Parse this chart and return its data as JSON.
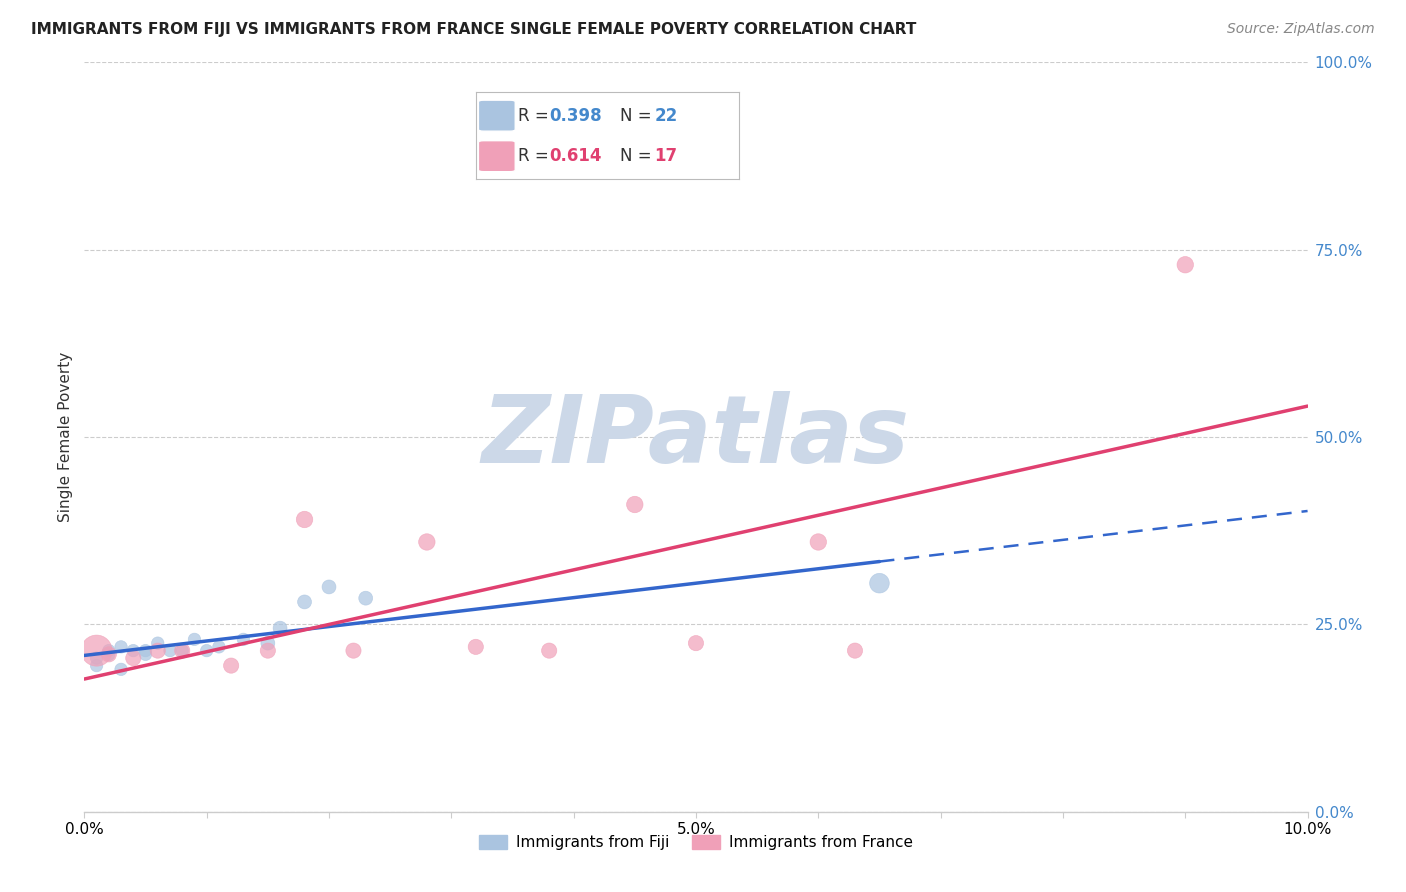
{
  "title": "IMMIGRANTS FROM FIJI VS IMMIGRANTS FROM FRANCE SINGLE FEMALE POVERTY CORRELATION CHART",
  "source": "Source: ZipAtlas.com",
  "ylabel": "Single Female Poverty",
  "xlim": [
    0.0,
    0.1
  ],
  "ylim": [
    0.0,
    1.0
  ],
  "ytick_right": [
    0.0,
    0.25,
    0.5,
    0.75,
    1.0
  ],
  "ytick_right_labels": [
    "0.0%",
    "25.0%",
    "50.0%",
    "75.0%",
    "100.0%"
  ],
  "xtick_vals": [
    0.0,
    0.01,
    0.02,
    0.03,
    0.04,
    0.05,
    0.06,
    0.07,
    0.08,
    0.09,
    0.1
  ],
  "xtick_labels": [
    "0.0%",
    "",
    "",
    "",
    "",
    "5.0%",
    "",
    "",
    "",
    "",
    "10.0%"
  ],
  "fiji_R": 0.398,
  "fiji_N": 22,
  "france_R": 0.614,
  "france_N": 17,
  "fiji_color": "#aac4e0",
  "france_color": "#f0a0b8",
  "fiji_line_color": "#3366cc",
  "france_line_color": "#e04070",
  "fiji_line_solid_end": 0.065,
  "fiji_line_x0": 0.0,
  "fiji_line_x1": 0.1,
  "france_line_x0": 0.0,
  "france_line_x1": 0.1,
  "fiji_scatter_x": [
    0.001,
    0.001,
    0.002,
    0.002,
    0.003,
    0.003,
    0.004,
    0.005,
    0.005,
    0.006,
    0.007,
    0.008,
    0.009,
    0.01,
    0.011,
    0.013,
    0.015,
    0.016,
    0.018,
    0.02,
    0.023,
    0.065
  ],
  "fiji_scatter_y": [
    0.195,
    0.205,
    0.21,
    0.215,
    0.22,
    0.19,
    0.215,
    0.215,
    0.21,
    0.225,
    0.215,
    0.215,
    0.23,
    0.215,
    0.22,
    0.23,
    0.225,
    0.245,
    0.28,
    0.3,
    0.285,
    0.305
  ],
  "fiji_scatter_size": [
    80,
    80,
    80,
    80,
    80,
    80,
    80,
    80,
    80,
    80,
    80,
    80,
    80,
    80,
    80,
    80,
    100,
    100,
    100,
    100,
    100,
    200
  ],
  "france_scatter_x": [
    0.001,
    0.002,
    0.004,
    0.006,
    0.008,
    0.012,
    0.015,
    0.018,
    0.022,
    0.028,
    0.032,
    0.038,
    0.045,
    0.05,
    0.06,
    0.063,
    0.09
  ],
  "france_scatter_y": [
    0.215,
    0.21,
    0.205,
    0.215,
    0.215,
    0.195,
    0.215,
    0.39,
    0.215,
    0.36,
    0.22,
    0.215,
    0.41,
    0.225,
    0.36,
    0.215,
    0.73
  ],
  "france_scatter_size": [
    500,
    120,
    120,
    120,
    120,
    120,
    120,
    140,
    120,
    140,
    120,
    120,
    140,
    120,
    140,
    120,
    140
  ],
  "background_color": "#ffffff",
  "watermark_text": "ZIPatlas",
  "watermark_color": "#ccd8e8",
  "grid_color": "#cccccc",
  "grid_style": "--",
  "title_fontsize": 11,
  "source_fontsize": 10,
  "axis_label_fontsize": 11,
  "tick_fontsize": 11,
  "right_tick_color": "#4488cc",
  "legend_box_color": "#aaaaaa",
  "legend_fiji_r_color": "#4488cc",
  "legend_france_r_color": "#e04070"
}
